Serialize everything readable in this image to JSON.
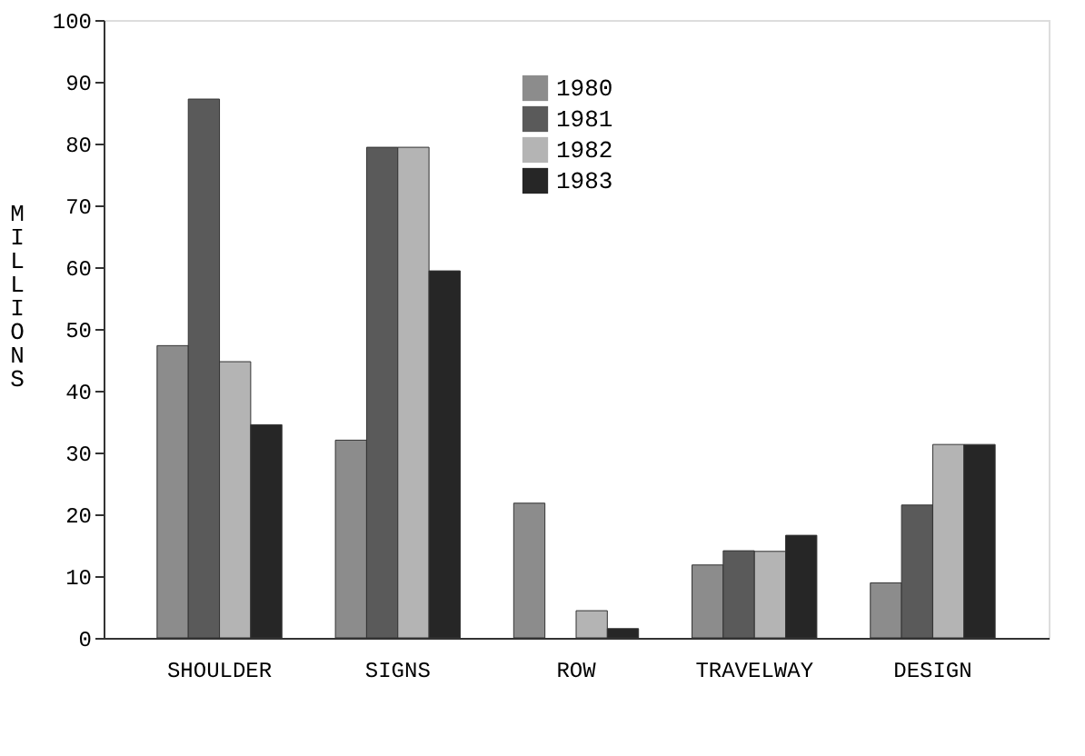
{
  "chart_data": {
    "type": "bar",
    "ylabel": "MILLIONS",
    "categories": [
      "SHOULDER",
      "SIGNS",
      "ROW",
      "TRAVELWAY",
      "DESIGN"
    ],
    "series": [
      {
        "name": "1980",
        "color": "#8c8c8c",
        "values": [
          47.3,
          32,
          21.8,
          11.8,
          8.9
        ]
      },
      {
        "name": "1981",
        "color": "#5a5a5a",
        "values": [
          87.2,
          79.4,
          null,
          14.1,
          21.5
        ]
      },
      {
        "name": "1982",
        "color": "#b4b4b4",
        "values": [
          44.7,
          79.4,
          4.4,
          14,
          31.3
        ]
      },
      {
        "name": "1983",
        "color": "#262626",
        "values": [
          34.5,
          59.4,
          1.5,
          16.6,
          31.3
        ]
      }
    ],
    "ylim": [
      0,
      100
    ],
    "yticks": [
      0,
      10,
      20,
      30,
      40,
      50,
      60,
      70,
      80,
      90,
      100
    ],
    "grid": false,
    "legend": "top"
  }
}
